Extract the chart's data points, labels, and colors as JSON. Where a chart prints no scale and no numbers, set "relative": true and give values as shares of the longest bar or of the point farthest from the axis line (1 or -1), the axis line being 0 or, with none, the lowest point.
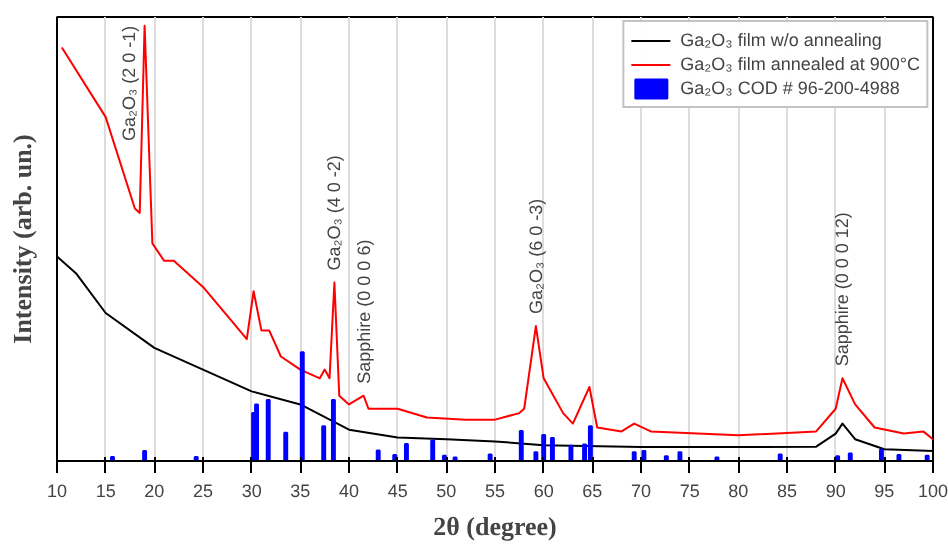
{
  "chart_data": {
    "type": "line",
    "xlabel": "2θ (degree)",
    "ylabel": "Intensity (arb. un.)",
    "relative": true,
    "xlim": [
      10,
      100
    ],
    "xticks": [
      10,
      15,
      20,
      25,
      30,
      35,
      40,
      45,
      50,
      55,
      60,
      65,
      70,
      75,
      80,
      85,
      90,
      95,
      100
    ],
    "grid": "x",
    "legend": "top right",
    "series": [
      {
        "name": "Ga₂O₃ film w/o annealing",
        "color": "#000000",
        "x": [
          10,
          12,
          15,
          20,
          25,
          30,
          35,
          40,
          45,
          50,
          55,
          60,
          70,
          80,
          88,
          90,
          90.7,
          92,
          95,
          100
        ],
        "values": [
          0.47,
          0.43,
          0.34,
          0.26,
          0.21,
          0.16,
          0.13,
          0.072,
          0.054,
          0.05,
          0.045,
          0.036,
          0.032,
          0.032,
          0.033,
          0.063,
          0.086,
          0.05,
          0.027,
          0.023
        ]
      },
      {
        "name": "Ga₂O₃ film annealed at 900°C",
        "color": "#ff0000",
        "x": [
          10.5,
          15,
          18,
          18.5,
          19,
          19.8,
          21,
          22,
          25,
          28,
          29.5,
          30.2,
          31,
          31.8,
          33,
          35,
          37,
          37.5,
          38,
          38.5,
          39,
          40,
          41.5,
          42,
          45,
          48,
          52,
          55,
          57.5,
          58,
          59.2,
          60,
          60.5,
          62,
          63,
          64.7,
          65.5,
          68,
          69.3,
          71,
          80,
          88,
          90,
          90.7,
          92,
          94,
          97,
          99,
          100
        ],
        "values": [
          0.95,
          0.79,
          0.58,
          0.57,
          1.0,
          0.5,
          0.46,
          0.46,
          0.4,
          0.32,
          0.28,
          0.39,
          0.3,
          0.3,
          0.24,
          0.21,
          0.19,
          0.21,
          0.19,
          0.41,
          0.15,
          0.13,
          0.15,
          0.12,
          0.12,
          0.1,
          0.095,
          0.095,
          0.11,
          0.12,
          0.31,
          0.19,
          0.17,
          0.11,
          0.086,
          0.17,
          0.077,
          0.068,
          0.086,
          0.068,
          0.059,
          0.068,
          0.12,
          0.19,
          0.13,
          0.077,
          0.063,
          0.068,
          0.05
        ]
      },
      {
        "name": "Ga₂O₃ COD # 96-200-4988",
        "type": "bar",
        "color": "#0000ff",
        "x": [
          15.7,
          19,
          24.3,
          30.2,
          30.5,
          31.7,
          33.5,
          35.2,
          37.4,
          38.4,
          43,
          44.7,
          45.9,
          48.6,
          49.8,
          50.9,
          54.5,
          57.7,
          59.2,
          60,
          60.9,
          62.8,
          64.2,
          64.8,
          69.3,
          70.3,
          72.6,
          74,
          77.8,
          84.3,
          90.2,
          91.5,
          94.7,
          96.5,
          99.4
        ],
        "values": [
          0.009,
          0.023,
          0.009,
          0.11,
          0.13,
          0.14,
          0.065,
          0.25,
          0.08,
          0.14,
          0.024,
          0.014,
          0.039,
          0.047,
          0.012,
          0.008,
          0.015,
          0.069,
          0.02,
          0.06,
          0.053,
          0.035,
          0.038,
          0.08,
          0.02,
          0.023,
          0.011,
          0.02,
          0.008,
          0.015,
          0.011,
          0.017,
          0.026,
          0.014,
          0.012
        ]
      }
    ],
    "annotations": [
      {
        "text": "Ga₂O₃ (2 0 -1)",
        "x": 19,
        "y": 1.0
      },
      {
        "text": "Ga₂O₃ (4 0 -2)",
        "x": 38.5,
        "y": 0.41
      },
      {
        "text": "Sapphire (0 0 0 6)",
        "x": 41.5,
        "y": 0.15
      },
      {
        "text": "Ga₂O₃ (6 0 -3)",
        "x": 59.2,
        "y": 0.31
      },
      {
        "text": "Sapphire (0 0 0 12)",
        "x": 90.7,
        "y": 0.19
      }
    ]
  }
}
